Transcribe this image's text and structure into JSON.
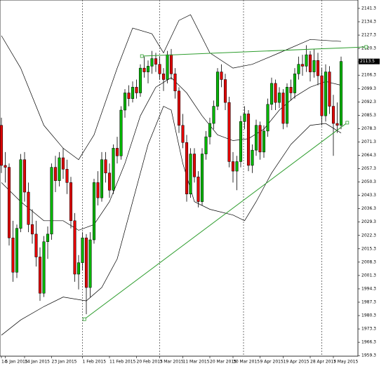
{
  "chart_data": {
    "type": "candlestick",
    "current_price": 2113.5,
    "ylim": [
      1959,
      2145.7
    ],
    "yticks": [
      1959.3,
      1966.3,
      1973.3,
      1980.3,
      1987.3,
      1994.3,
      2001.3,
      2008.3,
      2015.3,
      2022.3,
      2029.3,
      2036.3,
      2043.3,
      2050.3,
      2057.3,
      2064.3,
      2071.3,
      2078.3,
      2085.3,
      2092.3,
      2099.3,
      2106.3,
      2113.3,
      2120.3,
      2127.3,
      2134.3,
      2141.3
    ],
    "xticks": [
      {
        "value": 0,
        "label": "14"
      },
      {
        "value": 1,
        "label": "5 Jan 2015"
      },
      {
        "value": 6,
        "label": "14 Jan 2015"
      },
      {
        "value": 13,
        "label": "23 Jan 2015"
      },
      {
        "value": 21,
        "label": "1 Feb 2015"
      },
      {
        "value": 28,
        "label": "11 Feb 2015"
      },
      {
        "value": 35,
        "label": "20 Feb 2015"
      },
      {
        "value": 41,
        "label": "3 Mar 2015"
      },
      {
        "value": 47,
        "label": "11 Mar 2015"
      },
      {
        "value": 54,
        "label": "20 Mar 2015"
      },
      {
        "value": 60,
        "label": "30 Mar 2015"
      },
      {
        "value": 67,
        "label": "9 Apr 2015"
      },
      {
        "value": 73,
        "label": "19 Apr 2015"
      },
      {
        "value": 80,
        "label": "28 Apr 2015"
      },
      {
        "value": 86,
        "label": "7 May 2015"
      }
    ],
    "up_color": "#00b400",
    "down_color": "#e00000",
    "ohlc": [
      [
        2080,
        2084,
        2055,
        2059
      ],
      [
        2059,
        2066,
        2050,
        2058
      ],
      [
        2058,
        2060,
        2017,
        2021
      ],
      [
        2021,
        2030,
        1998,
        2003
      ],
      [
        2003,
        2028,
        2000,
        2026
      ],
      [
        2026,
        2065,
        2024,
        2062
      ],
      [
        2062,
        2066,
        2040,
        2045
      ],
      [
        2045,
        2050,
        2024,
        2028
      ],
      [
        2028,
        2036,
        2018,
        2023
      ],
      [
        2023,
        2030,
        2006,
        2011
      ],
      [
        2011,
        2016,
        1988,
        1992
      ],
      [
        1992,
        2022,
        1990,
        2019
      ],
      [
        2019,
        2027,
        2010,
        2023
      ],
      [
        2023,
        2060,
        2020,
        2058
      ],
      [
        2058,
        2064,
        2045,
        2051
      ],
      [
        2051,
        2066,
        2048,
        2063
      ],
      [
        2063,
        2068,
        2052,
        2057
      ],
      [
        2057,
        2062,
        2044,
        2050
      ],
      [
        2050,
        2053,
        2026,
        2030
      ],
      [
        2030,
        2034,
        1998,
        2002
      ],
      [
        2002,
        2012,
        1994,
        2008
      ],
      [
        2008,
        2024,
        2004,
        2021
      ],
      [
        2021,
        2023,
        1981,
        1995
      ],
      [
        1995,
        2024,
        1990,
        2020
      ],
      [
        2020,
        2052,
        2018,
        2050
      ],
      [
        2050,
        2056,
        2038,
        2042
      ],
      [
        2042,
        2066,
        2040,
        2062
      ],
      [
        2062,
        2066,
        2050,
        2055
      ],
      [
        2055,
        2060,
        2042,
        2046
      ],
      [
        2046,
        2070,
        2044,
        2068
      ],
      [
        2068,
        2074,
        2060,
        2064
      ],
      [
        2064,
        2090,
        2062,
        2088
      ],
      [
        2088,
        2099,
        2084,
        2097
      ],
      [
        2097,
        2101,
        2090,
        2094
      ],
      [
        2094,
        2103,
        2092,
        2100
      ],
      [
        2100,
        2104,
        2094,
        2097
      ],
      [
        2097,
        2112,
        2095,
        2110
      ],
      [
        2110,
        2116,
        2105,
        2108
      ],
      [
        2108,
        2114,
        2102,
        2111
      ],
      [
        2111,
        2119,
        2107,
        2115
      ],
      [
        2115,
        2118,
        2108,
        2112
      ],
      [
        2112,
        2116,
        2104,
        2107
      ],
      [
        2107,
        2110,
        2098,
        2104
      ],
      [
        2104,
        2119,
        2102,
        2117
      ],
      [
        2117,
        2120,
        2104,
        2107
      ],
      [
        2107,
        2110,
        2094,
        2098
      ],
      [
        2098,
        2100,
        2076,
        2080
      ],
      [
        2080,
        2086,
        2068,
        2071
      ],
      [
        2071,
        2075,
        2040,
        2044
      ],
      [
        2044,
        2068,
        2042,
        2065
      ],
      [
        2065,
        2068,
        2050,
        2053
      ],
      [
        2053,
        2056,
        2037,
        2040
      ],
      [
        2040,
        2068,
        2038,
        2065
      ],
      [
        2065,
        2077,
        2062,
        2074
      ],
      [
        2074,
        2084,
        2070,
        2081
      ],
      [
        2081,
        2093,
        2078,
        2090
      ],
      [
        2090,
        2110,
        2088,
        2108
      ],
      [
        2108,
        2112,
        2100,
        2104
      ],
      [
        2104,
        2107,
        2088,
        2092
      ],
      [
        2092,
        2095,
        2058,
        2061
      ],
      [
        2061,
        2066,
        2050,
        2056
      ],
      [
        2056,
        2064,
        2046,
        2061
      ],
      [
        2061,
        2085,
        2058,
        2082
      ],
      [
        2082,
        2090,
        2078,
        2086
      ],
      [
        2086,
        2088,
        2056,
        2059
      ],
      [
        2059,
        2070,
        2055,
        2067
      ],
      [
        2067,
        2083,
        2064,
        2080
      ],
      [
        2080,
        2082,
        2062,
        2066
      ],
      [
        2066,
        2080,
        2063,
        2077
      ],
      [
        2077,
        2094,
        2074,
        2091
      ],
      [
        2091,
        2105,
        2088,
        2102
      ],
      [
        2102,
        2104,
        2088,
        2092
      ],
      [
        2092,
        2100,
        2089,
        2097
      ],
      [
        2097,
        2099,
        2078,
        2081
      ],
      [
        2081,
        2102,
        2079,
        2100
      ],
      [
        2100,
        2104,
        2093,
        2097
      ],
      [
        2097,
        2110,
        2094,
        2107
      ],
      [
        2107,
        2116,
        2104,
        2112
      ],
      [
        2112,
        2117,
        2106,
        2111
      ],
      [
        2111,
        2122,
        2108,
        2117
      ],
      [
        2117,
        2119,
        2103,
        2108
      ],
      [
        2108,
        2120,
        2105,
        2114
      ],
      [
        2114,
        2118,
        2101,
        2106
      ],
      [
        2106,
        2110,
        2080,
        2085
      ],
      [
        2085,
        2112,
        2082,
        2108
      ],
      [
        2108,
        2111,
        2086,
        2090
      ],
      [
        2090,
        2096,
        2064,
        2081
      ],
      [
        2081,
        2092,
        2076,
        2080
      ],
      [
        2080,
        2116,
        2078,
        2113.5
      ]
    ],
    "bands": [
      {
        "color": "#000000",
        "x": [
          0,
          5,
          11,
          16,
          20,
          24,
          30,
          34,
          39,
          42,
          46,
          49,
          54,
          60,
          65,
          72,
          80,
          88
        ],
        "values": [
          2127,
          2110,
          2080,
          2068,
          2062,
          2075,
          2110,
          2131,
          2128,
          2118,
          2135,
          2138,
          2118,
          2110,
          2112,
          2118,
          2125,
          2124
        ]
      },
      {
        "color": "#000000",
        "x": [
          0,
          5,
          11,
          16,
          20,
          24,
          28,
          32,
          36,
          40,
          44,
          48,
          52,
          56,
          60,
          64,
          68,
          72,
          76,
          80,
          84,
          88
        ],
        "values": [
          2050,
          2040,
          2030,
          2030,
          2025,
          2028,
          2040,
          2060,
          2085,
          2100,
          2105,
          2097,
          2085,
          2075,
          2072,
          2073,
          2078,
          2088,
          2095,
          2100,
          2103,
          2101
        ]
      },
      {
        "color": "#000000",
        "x": [
          0,
          5,
          11,
          16,
          22,
          26,
          30,
          34,
          38,
          42,
          44,
          47,
          50,
          54,
          60,
          63,
          66,
          70,
          75,
          80,
          84,
          88
        ],
        "values": [
          1970,
          1978,
          1985,
          1990,
          1988,
          1995,
          2010,
          2040,
          2070,
          2090,
          2088,
          2060,
          2040,
          2036,
          2033,
          2030,
          2040,
          2055,
          2070,
          2080,
          2081,
          2076
        ]
      }
    ],
    "trendlines": [
      {
        "color": "#2e9d2e",
        "x": [
          21.5,
          89.6
        ],
        "values": [
          1978.4,
          2081.4
        ]
      },
      {
        "color": "#2e9d2e",
        "x": [
          36.4,
          94.5
        ],
        "values": [
          2116.3,
          2121.1
        ]
      }
    ]
  }
}
